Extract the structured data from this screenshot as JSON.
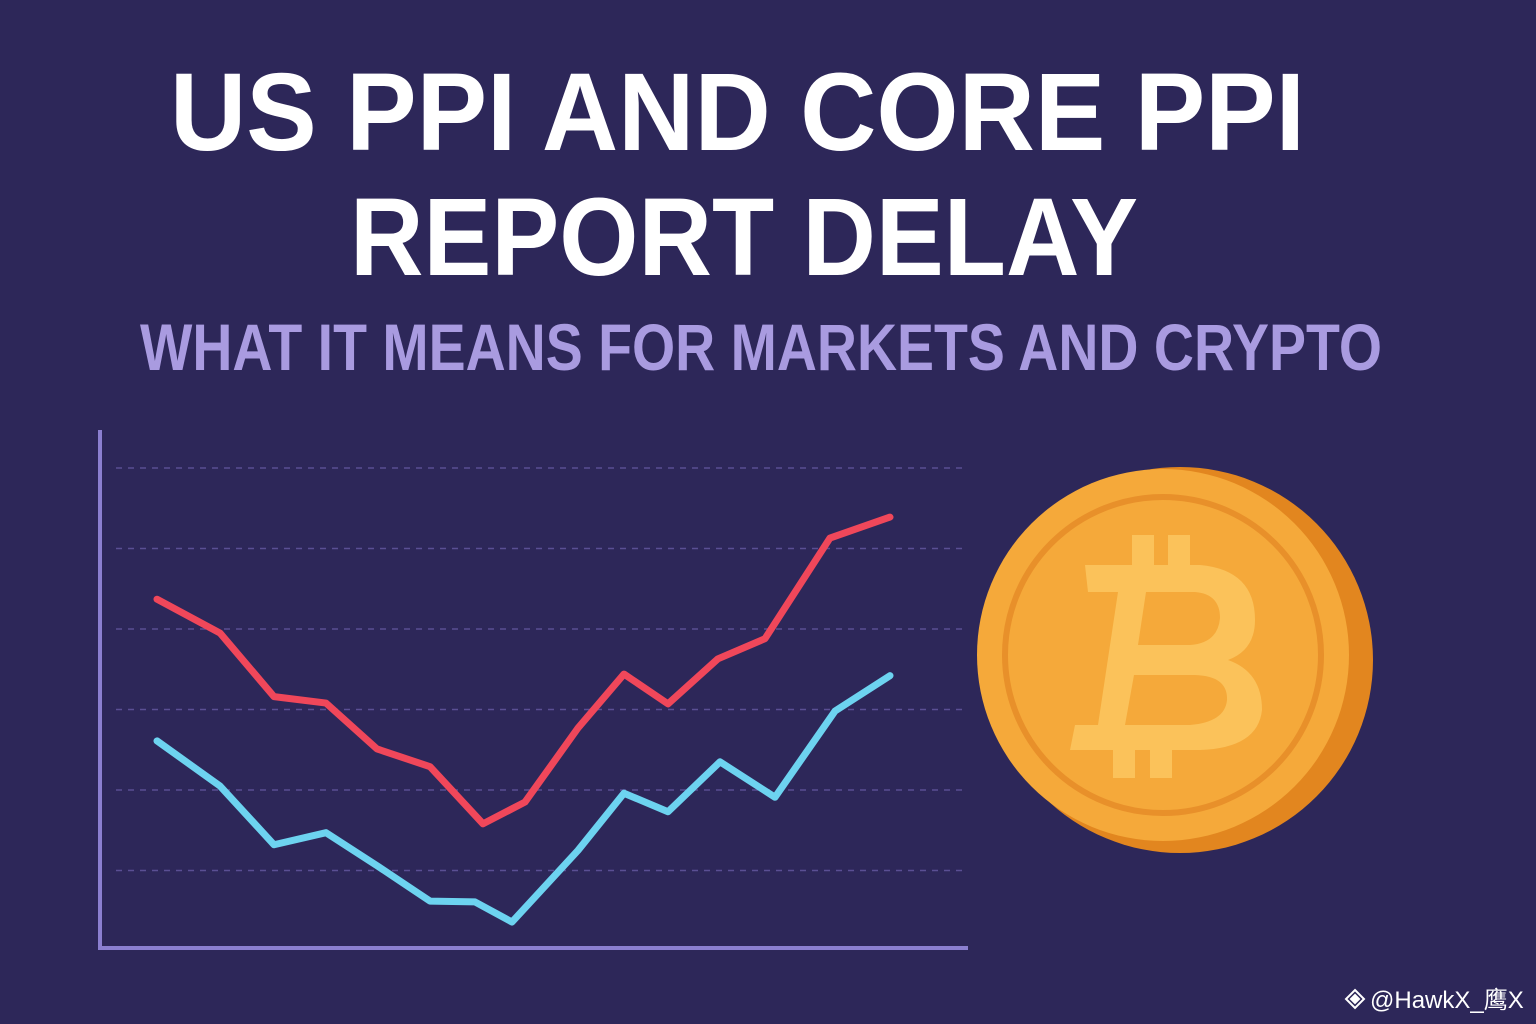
{
  "header": {
    "title_lines": [
      "US PPI AND CORE PPI",
      "REPORT DELAY"
    ],
    "subtitle": "WHAT IT MEANS FOR MARKETS AND CRYPTO"
  },
  "chart_data": {
    "type": "line",
    "xlim": [
      0,
      17.36
    ],
    "ylim": [
      0,
      6
    ],
    "gridlines": [
      1,
      2,
      3,
      4,
      5,
      6
    ],
    "grid": true,
    "series": [
      {
        "color": "#f0475a",
        "x": [
          1.14,
          2.4,
          3.48,
          4.52,
          5.54,
          6.6,
          7.66,
          8.5,
          9.56,
          10.48,
          11.36,
          12.36,
          13.3,
          14.6,
          15.8
        ],
        "values": [
          4.37,
          3.95,
          3.16,
          3.08,
          2.51,
          2.29,
          1.58,
          1.85,
          2.77,
          3.44,
          3.07,
          3.63,
          3.88,
          5.13,
          5.39
        ]
      },
      {
        "color": "#6dd3f0",
        "x": [
          1.14,
          2.4,
          3.48,
          4.52,
          5.54,
          6.6,
          7.5,
          8.24,
          9.56,
          10.48,
          11.36,
          12.4,
          13.5,
          14.7,
          15.8
        ],
        "values": [
          2.61,
          2.05,
          1.32,
          1.47,
          1.06,
          0.62,
          0.61,
          0.36,
          1.25,
          1.96,
          1.73,
          2.35,
          1.91,
          2.98,
          3.42
        ]
      }
    ]
  },
  "watermark": "@HawkX_鹰X"
}
